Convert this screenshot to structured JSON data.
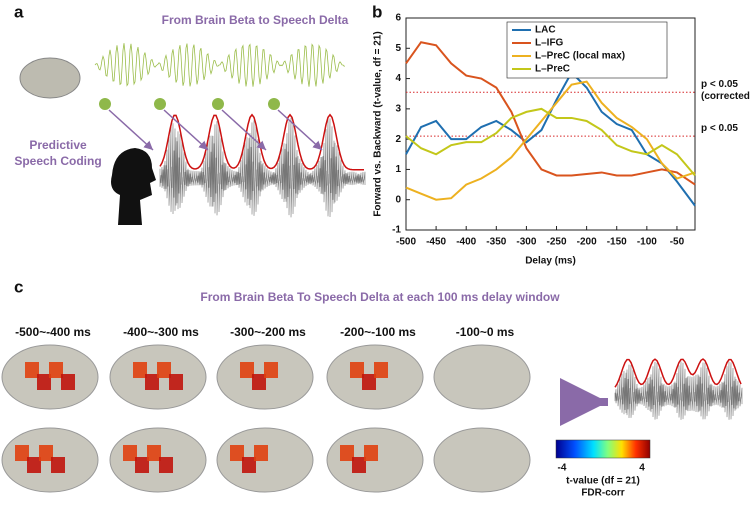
{
  "panel_labels": [
    "a",
    "b",
    "c"
  ],
  "panel_a": {
    "title": "From Brain Beta to Speech Delta",
    "caption": [
      "Predictive",
      "Speech Coding"
    ]
  },
  "panel_c": {
    "title": "From Brain Beta To Speech Delta at each 100 ms delay window",
    "windows": [
      "-500~-400 ms",
      "-400~-300 ms",
      "-300~-200 ms",
      "-200~-100 ms",
      "-100~0 ms"
    ],
    "colorbar": {
      "min_label": "-4",
      "max_label": "4",
      "title": "t-value (df = 21)",
      "subtitle": "FDR-corr"
    }
  },
  "chart_data": {
    "type": "line",
    "xlabel": "Delay (ms)",
    "ylabel": "Forward vs. Backward (t-value,  df = 21)",
    "x": [
      -500,
      -475,
      -450,
      -425,
      -400,
      -375,
      -350,
      -325,
      -300,
      -275,
      -250,
      -225,
      -200,
      -175,
      -150,
      -125,
      -100,
      -75,
      -50,
      -20
    ],
    "series": [
      {
        "name": "LAC",
        "color": "#1f6fb0",
        "values": [
          1.5,
          2.4,
          2.6,
          2.0,
          2.0,
          2.4,
          2.6,
          2.3,
          1.9,
          2.3,
          3.3,
          4.2,
          3.7,
          2.9,
          2.5,
          2.3,
          1.5,
          1.2,
          0.6,
          -0.2
        ]
      },
      {
        "name": "L–IFG",
        "color": "#d9541e",
        "values": [
          4.5,
          5.2,
          5.1,
          4.5,
          4.1,
          4.0,
          3.7,
          2.9,
          1.7,
          1.0,
          0.8,
          0.8,
          0.85,
          0.9,
          0.8,
          0.8,
          0.9,
          1.0,
          0.9,
          0.5
        ]
      },
      {
        "name": "L–PreC (local max)",
        "color": "#edb120",
        "values": [
          0.4,
          0.2,
          0.0,
          0.05,
          0.5,
          0.7,
          1.0,
          1.4,
          2.0,
          2.6,
          3.2,
          3.8,
          3.9,
          3.2,
          2.7,
          2.4,
          2.0,
          1.2,
          0.7,
          0.9
        ]
      },
      {
        "name": "L–PreC",
        "color": "#c3c71a",
        "values": [
          2.1,
          1.7,
          1.5,
          1.8,
          1.9,
          1.9,
          2.2,
          2.7,
          2.9,
          3.0,
          2.7,
          2.7,
          2.6,
          2.3,
          1.8,
          1.6,
          1.5,
          1.8,
          1.5,
          0.8
        ]
      }
    ],
    "xlim": [
      -500,
      -20
    ],
    "xticks": [
      -500,
      -450,
      -400,
      -350,
      -300,
      -250,
      -200,
      -150,
      -100,
      -50
    ],
    "ylim": [
      -1,
      6
    ],
    "yticks": [
      -1,
      0,
      1,
      2,
      3,
      4,
      5,
      6
    ],
    "thresholds": [
      {
        "value": 3.55,
        "lines": [
          "p < 0.05",
          "(corrected)"
        ],
        "color": "#d62728"
      },
      {
        "value": 2.1,
        "lines": [
          "p < 0.05"
        ],
        "color": "#d62728"
      }
    ],
    "legend": "upper right"
  }
}
